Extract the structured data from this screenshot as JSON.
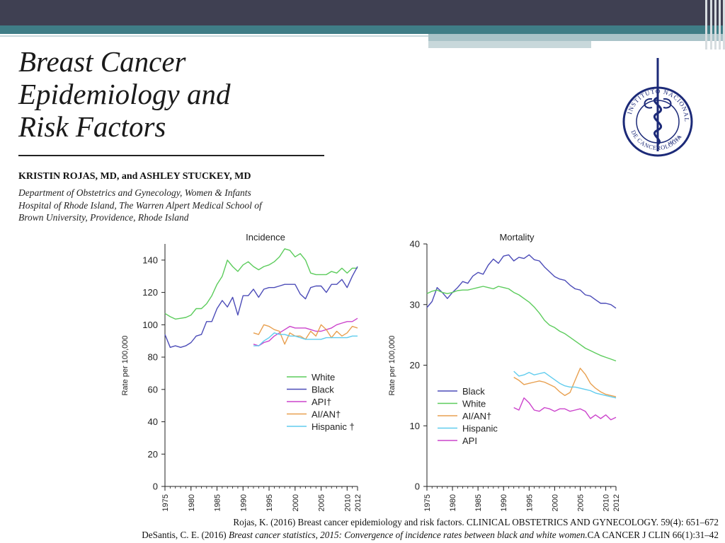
{
  "slide": {
    "title": "Breast Cancer\nEpidemiology and\nRisk Factors",
    "authors": "KRISTIN ROJAS, MD, and ASHLEY STUCKEY, MD",
    "affiliation": "Department of Obstetrics and Gynecology, Women & Infants\nHospital of Rhode Island, The Warren Alpert Medical School of\nBrown University, Providence, Rhode Island",
    "logo": {
      "top_text": "INSTITUTO NACIONAL",
      "bottom_text": "DE CANCEROLOGIA",
      "suffix": "México",
      "color": "#1c2a78"
    },
    "citations": [
      {
        "text": "Rojas, K. (2016) Breast cancer epidemiology and risk factors. CLINICAL OBSTETRICS AND GYNECOLOGY. 59(4): 651–672"
      },
      {
        "pre": "DeSantis, C. E. (2016) ",
        "italic": "Breast cancer statistics, 2015: Convergence of incidence rates between black and white women.",
        "post": "CA CANCER J CLIN 66(1):31–42"
      }
    ]
  },
  "chart_data": [
    {
      "type": "line",
      "title": "Incidence",
      "xlabel": "",
      "ylabel": "Rate per 100,000",
      "xlim": [
        1975,
        2012
      ],
      "ylim": [
        0,
        150
      ],
      "yticks": [
        0,
        20,
        40,
        60,
        80,
        100,
        120,
        140
      ],
      "xticks": [
        1975,
        1980,
        1985,
        1990,
        1995,
        2000,
        2005,
        2010,
        2012
      ],
      "legend_position": "bottom-right",
      "series": [
        {
          "name": "White",
          "color": "#5ccc5c",
          "x": [
            1975,
            1976,
            1977,
            1978,
            1979,
            1980,
            1981,
            1982,
            1983,
            1984,
            1985,
            1986,
            1987,
            1988,
            1989,
            1990,
            1991,
            1992,
            1993,
            1994,
            1995,
            1996,
            1997,
            1998,
            1999,
            2000,
            2001,
            2002,
            2003,
            2004,
            2005,
            2006,
            2007,
            2008,
            2009,
            2010,
            2011,
            2012
          ],
          "y": [
            107,
            105,
            103.5,
            104,
            104.5,
            106,
            110,
            110,
            113,
            118,
            125,
            130,
            140,
            136,
            133,
            137,
            139,
            136,
            134,
            136,
            137,
            139,
            142,
            147,
            146,
            142,
            144,
            140,
            132,
            131,
            131,
            131,
            133,
            132,
            135,
            132,
            135,
            135
          ]
        },
        {
          "name": "Black",
          "color": "#4c4cb8",
          "x": [
            1975,
            1976,
            1977,
            1978,
            1979,
            1980,
            1981,
            1982,
            1983,
            1984,
            1985,
            1986,
            1987,
            1988,
            1989,
            1990,
            1991,
            1992,
            1993,
            1994,
            1995,
            1996,
            1997,
            1998,
            1999,
            2000,
            2001,
            2002,
            2003,
            2004,
            2005,
            2006,
            2007,
            2008,
            2009,
            2010,
            2011,
            2012
          ],
          "y": [
            94,
            86,
            87,
            86,
            87,
            89,
            93,
            94,
            102,
            102,
            110,
            115,
            111,
            117,
            106,
            118,
            118,
            122,
            117,
            122,
            123,
            123,
            124,
            125,
            125,
            125,
            119,
            116,
            123,
            124,
            124,
            120,
            125,
            125,
            128,
            123,
            130,
            136
          ]
        },
        {
          "name": "API†",
          "color": "#cc44cc",
          "x": [
            1992,
            1993,
            1994,
            1995,
            1996,
            1997,
            1998,
            1999,
            2000,
            2001,
            2002,
            2003,
            2004,
            2005,
            2006,
            2007,
            2008,
            2009,
            2010,
            2011,
            2012
          ],
          "y": [
            88,
            87,
            89,
            90,
            93,
            95,
            97,
            99,
            98,
            98,
            98,
            97,
            96,
            96,
            97,
            98,
            100,
            101,
            102,
            102,
            104
          ]
        },
        {
          "name": "AI/AN†",
          "color": "#e8a050",
          "x": [
            1992,
            1993,
            1994,
            1995,
            1996,
            1997,
            1998,
            1999,
            2000,
            2001,
            2002,
            2003,
            2004,
            2005,
            2006,
            2007,
            2008,
            2009,
            2010,
            2011,
            2012
          ],
          "y": [
            95,
            94,
            100,
            99,
            97,
            96,
            88,
            95,
            93,
            93,
            91,
            96,
            93,
            100,
            97,
            92,
            96,
            93,
            95,
            99,
            98
          ]
        },
        {
          "name": "Hispanic †",
          "color": "#60ccee",
          "x": [
            1992,
            1993,
            1994,
            1995,
            1996,
            1997,
            1998,
            1999,
            2000,
            2001,
            2002,
            2003,
            2004,
            2005,
            2006,
            2007,
            2008,
            2009,
            2010,
            2011,
            2012
          ],
          "y": [
            87,
            87,
            90,
            92,
            95,
            94,
            94,
            93,
            93,
            92,
            91,
            91,
            91,
            91,
            92,
            92,
            92,
            92,
            92,
            93,
            93
          ]
        }
      ]
    },
    {
      "type": "line",
      "title": "Mortality",
      "xlabel": "",
      "ylabel": "Rate per 100,000",
      "xlim": [
        1975,
        2012
      ],
      "ylim": [
        0,
        40
      ],
      "yticks": [
        0,
        10,
        20,
        30,
        40
      ],
      "xticks": [
        1975,
        1980,
        1985,
        1990,
        1995,
        2000,
        2005,
        2010,
        2012
      ],
      "legend_position": "bottom-left",
      "series": [
        {
          "name": "Black",
          "color": "#4c4cb8",
          "x": [
            1975,
            1976,
            1977,
            1978,
            1979,
            1980,
            1981,
            1982,
            1983,
            1984,
            1985,
            1986,
            1987,
            1988,
            1989,
            1990,
            1991,
            1992,
            1993,
            1994,
            1995,
            1996,
            1997,
            1998,
            1999,
            2000,
            2001,
            2002,
            2003,
            2004,
            2005,
            2006,
            2007,
            2008,
            2009,
            2010,
            2011,
            2012
          ],
          "y": [
            29.5,
            30.5,
            32.8,
            32,
            31,
            32,
            32.8,
            33.8,
            33.5,
            34.7,
            35.3,
            35,
            36.5,
            37.5,
            36.8,
            38,
            38.2,
            37.2,
            37.8,
            37.6,
            38.2,
            37.4,
            37.2,
            36.2,
            35.4,
            34.6,
            34.2,
            34,
            33.2,
            32.6,
            32.4,
            31.6,
            31.4,
            30.8,
            30.2,
            30.2,
            30,
            29.4
          ]
        },
        {
          "name": "White",
          "color": "#5ccc5c",
          "x": [
            1975,
            1976,
            1977,
            1978,
            1979,
            1980,
            1981,
            1982,
            1983,
            1984,
            1985,
            1986,
            1987,
            1988,
            1989,
            1990,
            1991,
            1992,
            1993,
            1994,
            1995,
            1996,
            1997,
            1998,
            1999,
            2000,
            2001,
            2002,
            2003,
            2004,
            2005,
            2006,
            2007,
            2008,
            2009,
            2010,
            2011,
            2012
          ],
          "y": [
            31.8,
            32.2,
            32.4,
            32,
            31.8,
            32,
            32.3,
            32.4,
            32.4,
            32.6,
            32.8,
            33,
            32.8,
            32.6,
            33,
            32.8,
            32.6,
            32,
            31.6,
            31,
            30.4,
            29.6,
            28.6,
            27.4,
            26.6,
            26.2,
            25.6,
            25.2,
            24.6,
            24,
            23.4,
            22.8,
            22.4,
            22,
            21.6,
            21.3,
            21,
            20.7
          ]
        },
        {
          "name": "AI/AN†",
          "color": "#e8a050",
          "x": [
            1992,
            1993,
            1994,
            1995,
            1996,
            1997,
            1998,
            1999,
            2000,
            2001,
            2002,
            2003,
            2004,
            2005,
            2006,
            2007,
            2008,
            2009,
            2010,
            2011,
            2012
          ],
          "y": [
            18,
            17.5,
            16.8,
            17,
            17.2,
            17.4,
            17.2,
            16.8,
            16.4,
            15.6,
            15,
            15.5,
            17.5,
            19.5,
            18.5,
            17,
            16.2,
            15.6,
            15.2,
            15,
            14.8
          ]
        },
        {
          "name": "Hispanic",
          "color": "#60ccee",
          "x": [
            1992,
            1993,
            1994,
            1995,
            1996,
            1997,
            1998,
            1999,
            2000,
            2001,
            2002,
            2003,
            2004,
            2005,
            2006,
            2007,
            2008,
            2009,
            2010,
            2011,
            2012
          ],
          "y": [
            19,
            18.2,
            18.4,
            18.8,
            18.4,
            18.6,
            18.8,
            18.2,
            17.6,
            17,
            16.6,
            16.4,
            16.4,
            16.2,
            16,
            15.8,
            15.4,
            15.2,
            15,
            14.8,
            14.6
          ]
        },
        {
          "name": "API",
          "color": "#cc44cc",
          "x": [
            1992,
            1993,
            1994,
            1995,
            1996,
            1997,
            1998,
            1999,
            2000,
            2001,
            2002,
            2003,
            2004,
            2005,
            2006,
            2007,
            2008,
            2009,
            2010,
            2011,
            2012
          ],
          "y": [
            13,
            12.6,
            14.6,
            13.8,
            12.6,
            12.4,
            13,
            12.8,
            12.4,
            12.8,
            12.8,
            12.4,
            12.6,
            12.8,
            12.4,
            11.2,
            11.8,
            11.2,
            11.8,
            11,
            11.4
          ]
        }
      ]
    }
  ]
}
